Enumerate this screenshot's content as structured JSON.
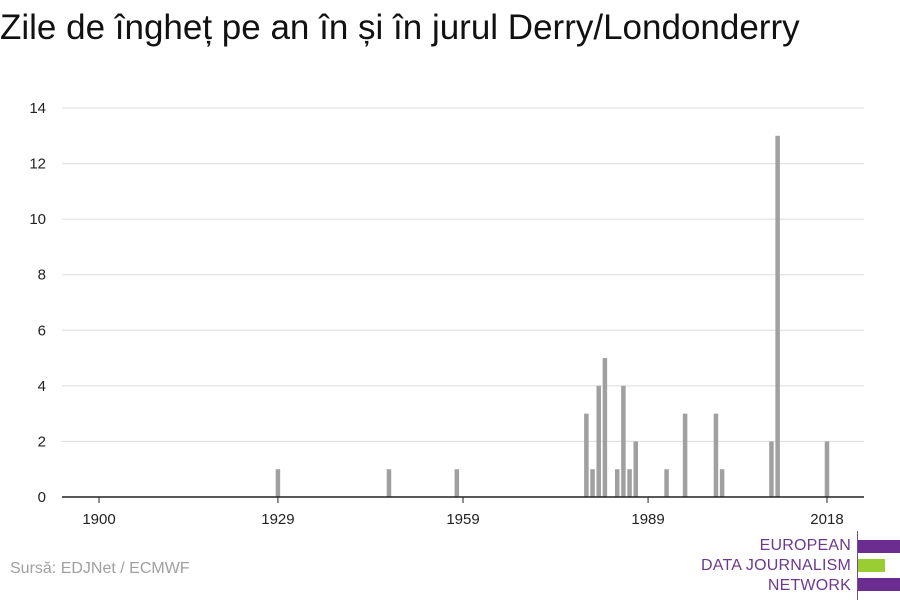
{
  "title": "Zile de îngheț pe an în și în jurul Derry/Londonderry",
  "source": "Sursă: EDJNet / ECMWF",
  "logo": {
    "lines": [
      "EUROPEAN",
      "DATA JOURNALISM",
      "NETWORK"
    ],
    "colors": [
      "#6b2d8f",
      "#9acd32",
      "#6b2d8f"
    ]
  },
  "chart_data": {
    "type": "bar",
    "xlabel": "",
    "ylabel": "",
    "x_ticks": [
      1900,
      1929,
      1959,
      1989,
      2018
    ],
    "y_ticks": [
      0,
      2,
      4,
      6,
      8,
      10,
      12,
      14
    ],
    "xlim": [
      1894,
      2024
    ],
    "ylim": [
      0,
      14
    ],
    "grid": true,
    "bar_color": "#a0a0a0",
    "series": [
      {
        "x": [
          1929,
          1947,
          1958,
          1979,
          1980,
          1981,
          1982,
          1984,
          1985,
          1986,
          1987,
          1992,
          1995,
          2000,
          2001,
          2009,
          2010,
          2018
        ],
        "values": [
          1,
          1,
          1,
          3,
          1,
          4,
          5,
          1,
          4,
          1,
          2,
          1,
          3,
          3,
          1,
          2,
          13,
          2
        ]
      }
    ]
  }
}
